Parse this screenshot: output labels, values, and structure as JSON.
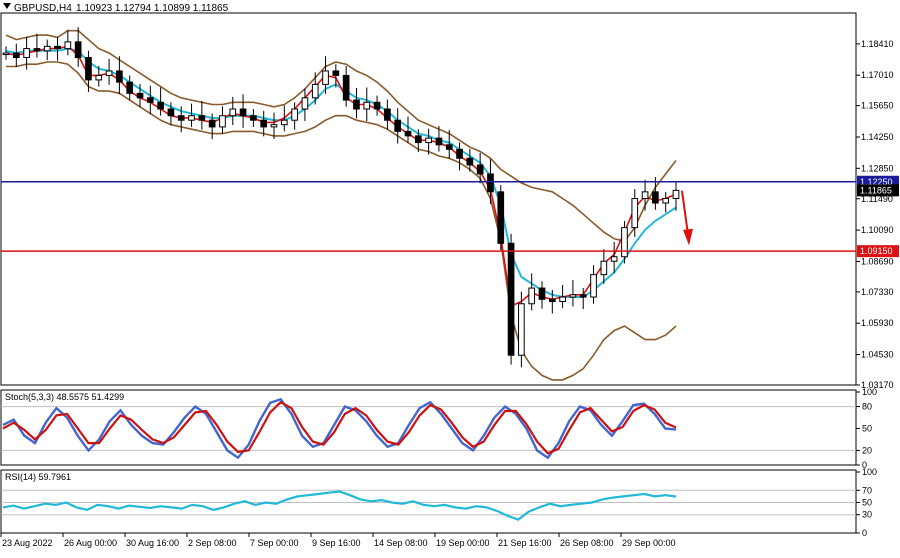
{
  "header": {
    "symbol_tf": "GBPUSD,H4",
    "ohlc": "1.10923 1.12794 1.10899 1.11865"
  },
  "colors": {
    "candle": "#000000",
    "ma_red": "#dd1111",
    "ma_cyan": "#22b8d8",
    "bollinger": "#8a5a2b",
    "line_blue": "#1a1a9a",
    "line_red": "#dd1111",
    "stoch_main": "#4466cc",
    "stoch_signal": "#cc1111",
    "rsi": "#22b8d8",
    "grid": "#c0c0c0",
    "frame": "#000000"
  },
  "chart_data": [
    {
      "type": "candlestick",
      "panel": "price",
      "ylim": [
        1.0317,
        1.197
      ],
      "y_ticks": [
        "1.18410",
        "1.17010",
        "1.15650",
        "1.14250",
        "1.12850",
        "1.11490",
        "1.10090",
        "1.08690",
        "1.07330",
        "1.05930",
        "1.04530",
        "1.03170"
      ],
      "x_ticks": [
        "23 Aug 2022",
        "26 Aug 00:00",
        "30 Aug 16:00",
        "2 Sep 08:00",
        "7 Sep 00:00",
        "9 Sep 16:00",
        "14 Sep 08:00",
        "19 Sep 00:00",
        "21 Sep 16:00",
        "26 Sep 08:00",
        "29 Sep 00:00"
      ],
      "levels": [
        {
          "label": "1.12250",
          "value": 1.1225,
          "color": "#1a1a9a"
        },
        {
          "label": "1.09150",
          "value": 1.0915,
          "color": "#dd1111"
        }
      ],
      "current_price_label": "1.11865",
      "close": [
        1.18,
        1.178,
        1.182,
        1.181,
        1.183,
        1.182,
        1.185,
        1.178,
        1.168,
        1.17,
        1.172,
        1.167,
        1.162,
        1.16,
        1.158,
        1.155,
        1.152,
        1.15,
        1.152,
        1.15,
        1.147,
        1.152,
        1.155,
        1.152,
        1.15,
        1.147,
        1.148,
        1.15,
        1.155,
        1.16,
        1.166,
        1.172,
        1.17,
        1.159,
        1.155,
        1.158,
        1.155,
        1.15,
        1.145,
        1.143,
        1.14,
        1.142,
        1.139,
        1.137,
        1.133,
        1.13,
        1.126,
        1.118,
        1.095,
        1.045,
        1.068,
        1.075,
        1.07,
        1.069,
        1.071,
        1.072,
        1.071,
        1.081,
        1.087,
        1.089,
        1.102,
        1.115,
        1.118,
        1.113,
        1.115,
        1.11865
      ],
      "ma_fast": [
        1.18,
        1.179,
        1.18,
        1.181,
        1.182,
        1.182,
        1.183,
        1.179,
        1.17,
        1.17,
        1.171,
        1.168,
        1.163,
        1.16,
        1.158,
        1.155,
        1.152,
        1.151,
        1.151,
        1.15,
        1.149,
        1.151,
        1.153,
        1.152,
        1.151,
        1.149,
        1.149,
        1.151,
        1.155,
        1.16,
        1.165,
        1.17,
        1.169,
        1.16,
        1.157,
        1.157,
        1.155,
        1.151,
        1.147,
        1.144,
        1.141,
        1.141,
        1.14,
        1.138,
        1.134,
        1.131,
        1.127,
        1.119,
        1.098,
        1.067,
        1.069,
        1.073,
        1.071,
        1.07,
        1.071,
        1.072,
        1.072,
        1.079,
        1.086,
        1.09,
        1.1,
        1.111,
        1.116,
        1.114,
        1.115,
        1.117
      ],
      "ma_slow": [
        1.181,
        1.18,
        1.181,
        1.181,
        1.181,
        1.181,
        1.182,
        1.181,
        1.176,
        1.173,
        1.172,
        1.17,
        1.167,
        1.164,
        1.161,
        1.158,
        1.156,
        1.154,
        1.153,
        1.152,
        1.151,
        1.151,
        1.152,
        1.152,
        1.152,
        1.151,
        1.15,
        1.15,
        1.152,
        1.155,
        1.159,
        1.164,
        1.166,
        1.163,
        1.16,
        1.159,
        1.157,
        1.154,
        1.15,
        1.147,
        1.144,
        1.143,
        1.141,
        1.14,
        1.137,
        1.134,
        1.131,
        1.125,
        1.112,
        1.09,
        1.08,
        1.077,
        1.074,
        1.072,
        1.071,
        1.071,
        1.071,
        1.074,
        1.078,
        1.082,
        1.088,
        1.095,
        1.101,
        1.105,
        1.108,
        1.111
      ],
      "bb_upper": [
        1.188,
        1.186,
        1.187,
        1.188,
        1.188,
        1.187,
        1.19,
        1.19,
        1.186,
        1.182,
        1.18,
        1.177,
        1.174,
        1.171,
        1.168,
        1.165,
        1.162,
        1.16,
        1.159,
        1.158,
        1.157,
        1.157,
        1.158,
        1.158,
        1.158,
        1.157,
        1.156,
        1.157,
        1.16,
        1.164,
        1.169,
        1.174,
        1.176,
        1.175,
        1.172,
        1.17,
        1.167,
        1.163,
        1.158,
        1.154,
        1.15,
        1.148,
        1.146,
        1.144,
        1.141,
        1.138,
        1.136,
        1.133,
        1.128,
        1.125,
        1.122,
        1.12,
        1.119,
        1.118,
        1.115,
        1.112,
        1.108,
        1.104,
        1.1,
        1.097,
        1.096,
        1.102,
        1.112,
        1.12,
        1.126,
        1.132
      ],
      "bb_lower": [
        1.174,
        1.174,
        1.175,
        1.175,
        1.176,
        1.176,
        1.175,
        1.171,
        1.165,
        1.163,
        1.163,
        1.162,
        1.159,
        1.156,
        1.153,
        1.15,
        1.148,
        1.147,
        1.146,
        1.145,
        1.144,
        1.144,
        1.145,
        1.145,
        1.145,
        1.144,
        1.143,
        1.143,
        1.144,
        1.145,
        1.147,
        1.15,
        1.152,
        1.152,
        1.15,
        1.149,
        1.148,
        1.146,
        1.143,
        1.14,
        1.137,
        1.136,
        1.134,
        1.133,
        1.131,
        1.128,
        1.124,
        1.115,
        1.096,
        1.063,
        1.047,
        1.04,
        1.036,
        1.034,
        1.034,
        1.036,
        1.039,
        1.045,
        1.052,
        1.056,
        1.058,
        1.055,
        1.052,
        1.052,
        1.054,
        1.058
      ]
    },
    {
      "type": "line",
      "panel": "stochastic",
      "title": "Stoch(5,3,3) 48.5575 51.4299",
      "ylim": [
        0,
        100
      ],
      "levels": [
        80,
        20
      ],
      "y_ticks": [
        "100",
        "80",
        "50",
        "20",
        "0"
      ],
      "main": [
        55,
        62,
        40,
        30,
        58,
        78,
        65,
        40,
        20,
        35,
        60,
        75,
        55,
        40,
        30,
        28,
        45,
        65,
        80,
        70,
        45,
        20,
        10,
        28,
        60,
        85,
        90,
        70,
        40,
        25,
        30,
        55,
        80,
        75,
        60,
        40,
        25,
        30,
        55,
        78,
        86,
        70,
        50,
        30,
        20,
        40,
        65,
        80,
        70,
        50,
        20,
        10,
        30,
        60,
        80,
        75,
        55,
        40,
        60,
        82,
        84,
        70,
        50,
        48.56
      ],
      "signal": [
        50,
        58,
        48,
        35,
        48,
        68,
        70,
        50,
        30,
        30,
        50,
        68,
        62,
        48,
        35,
        30,
        38,
        55,
        72,
        74,
        55,
        32,
        18,
        20,
        45,
        72,
        86,
        78,
        52,
        32,
        28,
        45,
        70,
        78,
        68,
        48,
        32,
        28,
        45,
        68,
        82,
        76,
        58,
        38,
        25,
        32,
        55,
        74,
        74,
        56,
        32,
        16,
        22,
        48,
        72,
        78,
        62,
        46,
        52,
        74,
        82,
        76,
        58,
        51.43
      ]
    },
    {
      "type": "line",
      "panel": "rsi",
      "title": "RSI(14) 59.7961",
      "ylim": [
        0,
        100
      ],
      "levels": [
        70,
        50,
        30
      ],
      "y_ticks": [
        "100",
        "70",
        "50",
        "30",
        "0"
      ],
      "values": [
        42,
        45,
        40,
        44,
        48,
        46,
        50,
        42,
        38,
        46,
        44,
        40,
        45,
        43,
        41,
        44,
        42,
        40,
        46,
        44,
        38,
        42,
        48,
        52,
        46,
        50,
        48,
        55,
        60,
        62,
        64,
        66,
        68,
        62,
        55,
        52,
        54,
        50,
        48,
        52,
        46,
        44,
        46,
        42,
        40,
        44,
        42,
        36,
        28,
        22,
        35,
        42,
        48,
        44,
        46,
        48,
        50,
        55,
        58,
        60,
        62,
        64,
        60,
        62,
        59.8
      ]
    }
  ]
}
